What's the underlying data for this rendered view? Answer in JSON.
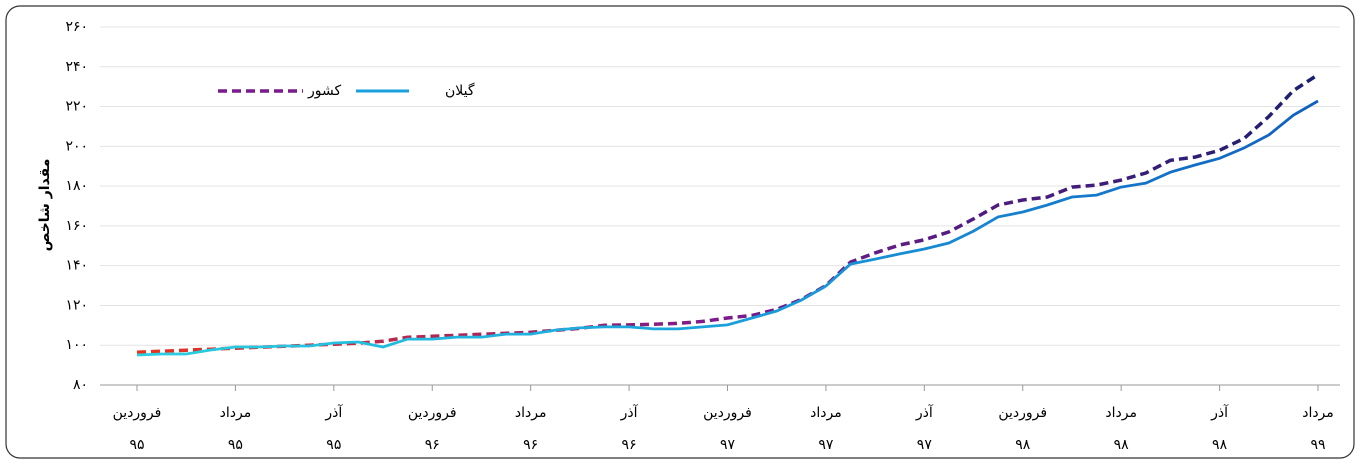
{
  "chart_data": {
    "type": "line",
    "y_label": "مقدار شاخص",
    "categories": [
      "فروردین",
      null,
      null,
      null,
      "مرداد",
      null,
      null,
      null,
      "آذر",
      null,
      null,
      null,
      "فروردین",
      null,
      null,
      null,
      "مرداد",
      null,
      null,
      null,
      "آذر",
      null,
      null,
      null,
      "فروردین",
      null,
      null,
      null,
      "مرداد",
      null,
      null,
      null,
      "آذر",
      null,
      null,
      null,
      "فروردین",
      null,
      null,
      null,
      "مرداد",
      null,
      null,
      null,
      "آذر",
      null,
      null,
      null,
      "مرداد"
    ],
    "category_years": [
      "۹۵",
      null,
      null,
      null,
      "۹۵",
      null,
      null,
      null,
      "۹۵",
      null,
      null,
      null,
      "۹۶",
      null,
      null,
      null,
      "۹۶",
      null,
      null,
      null,
      "۹۶",
      null,
      null,
      null,
      "۹۷",
      null,
      null,
      null,
      "۹۷",
      null,
      null,
      null,
      "۹۷",
      null,
      null,
      null,
      "۹۸",
      null,
      null,
      null,
      "۹۸",
      null,
      null,
      null,
      "۹۸",
      null,
      null,
      null,
      "۹۹"
    ],
    "series": [
      {
        "name": "کشور",
        "color": "#7a1a8c",
        "gradient": [
          "#e8341c",
          "#7a1a8c",
          "#1b1f6e"
        ],
        "dashed": true,
        "values": [
          96.5,
          97,
          97.5,
          98,
          98.5,
          99,
          99.5,
          100,
          100.5,
          101,
          102,
          104,
          104.5,
          105,
          105.5,
          106,
          106.5,
          107.5,
          108.5,
          110,
          110.2,
          110.5,
          111,
          112,
          113.7,
          115,
          118,
          123,
          130,
          141.8,
          146.4,
          150.4,
          153,
          157,
          163.5,
          170.5,
          173,
          174.5,
          179.5,
          180.5,
          183,
          186.6,
          193,
          194.6,
          198,
          204,
          215,
          228,
          236
        ]
      },
      {
        "name": "گیلان",
        "color": "#1aa0dc",
        "gradient": [
          "#2ad0e0",
          "#1aa0dc",
          "#1060c0"
        ],
        "dashed": false,
        "values": [
          95.1,
          95.6,
          95.6,
          97.6,
          99.1,
          99.1,
          99.6,
          99.6,
          101.1,
          101.6,
          99.1,
          103.1,
          103.1,
          104.1,
          104.1,
          105.6,
          105.6,
          107.6,
          108.7,
          109.2,
          109.2,
          108.2,
          108.2,
          109.2,
          110.2,
          113.7,
          117.2,
          122.7,
          129.8,
          140.8,
          143.3,
          145.9,
          148.4,
          151.4,
          157.4,
          164.5,
          167,
          170.5,
          174.5,
          175.5,
          179.5,
          181.5,
          187,
          190.6,
          194,
          199.2,
          205.7,
          215.7,
          222.8
        ]
      }
    ],
    "ylim": [
      80,
      260
    ],
    "yticks": [
      {
        "value": 80,
        "label": "۸۰"
      },
      {
        "value": 100,
        "label": "۱۰۰"
      },
      {
        "value": 120,
        "label": "۱۲۰"
      },
      {
        "value": 140,
        "label": "۱۴۰"
      },
      {
        "value": 160,
        "label": "۱۶۰"
      },
      {
        "value": 180,
        "label": "۱۸۰"
      },
      {
        "value": 200,
        "label": "۲۰۰"
      },
      {
        "value": 220,
        "label": "۲۲۰"
      },
      {
        "value": 240,
        "label": "۲۴۰"
      },
      {
        "value": 260,
        "label": "۲۶۰"
      }
    ],
    "grid": true
  }
}
